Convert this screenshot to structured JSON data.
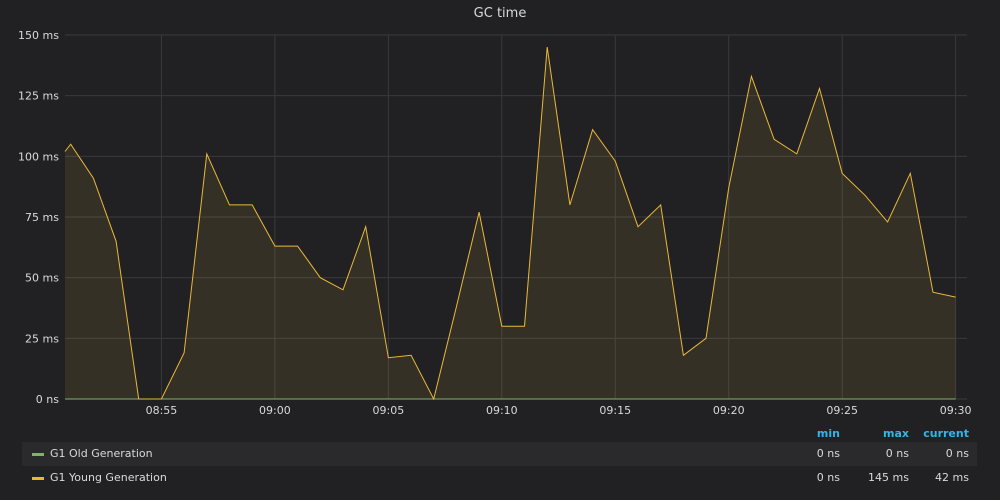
{
  "panel": {
    "title": "GC time"
  },
  "legend": {
    "headers": {
      "min": "min",
      "max": "max",
      "current": "current"
    },
    "series": [
      {
        "name": "G1 Old Generation",
        "color": "#7eb26d",
        "min": "0 ns",
        "max": "0 ns",
        "current": "0 ns"
      },
      {
        "name": "G1 Young Generation",
        "color": "#eab839",
        "min": "0 ns",
        "max": "145 ms",
        "current": "42 ms"
      }
    ]
  },
  "chart_data": {
    "type": "area",
    "title": "GC time",
    "unit": "ms",
    "x_ticks": [
      "08:55",
      "09:00",
      "09:05",
      "09:10",
      "09:15",
      "09:20",
      "09:25",
      "09:30"
    ],
    "x_start": "08:50:45",
    "x_end": "09:30:30",
    "y_ticks": [
      "0 ns",
      "25 ms",
      "50 ms",
      "75 ms",
      "100 ms",
      "125 ms",
      "150 ms"
    ],
    "ylim": [
      0,
      150
    ],
    "grid": true,
    "legend_position": "bottom",
    "series": [
      {
        "name": "G1 Old Generation",
        "color": "#7eb26d",
        "x": [
          "08:50",
          "08:51",
          "08:52",
          "08:53",
          "08:54",
          "08:55",
          "08:56",
          "08:57",
          "08:58",
          "08:59",
          "09:00",
          "09:01",
          "09:02",
          "09:03",
          "09:04",
          "09:05",
          "09:06",
          "09:07",
          "09:08",
          "09:09",
          "09:10",
          "09:11",
          "09:12",
          "09:13",
          "09:14",
          "09:15",
          "09:16",
          "09:17",
          "09:18",
          "09:19",
          "09:20",
          "09:21",
          "09:22",
          "09:23",
          "09:24",
          "09:25",
          "09:26",
          "09:27",
          "09:28",
          "09:29",
          "09:30"
        ],
        "values": [
          0,
          0,
          0,
          0,
          0,
          0,
          0,
          0,
          0,
          0,
          0,
          0,
          0,
          0,
          0,
          0,
          0,
          0,
          0,
          0,
          0,
          0,
          0,
          0,
          0,
          0,
          0,
          0,
          0,
          0,
          0,
          0,
          0,
          0,
          0,
          0,
          0,
          0,
          0,
          0,
          0
        ]
      },
      {
        "name": "G1 Young Generation",
        "color": "#eab839",
        "x": [
          "08:50:45",
          "08:51",
          "08:52",
          "08:53",
          "08:54",
          "08:55",
          "08:56",
          "08:57",
          "08:58",
          "08:59",
          "09:00",
          "09:01",
          "09:02",
          "09:03",
          "09:04",
          "09:05",
          "09:06",
          "09:07",
          "09:08",
          "09:09",
          "09:10",
          "09:11",
          "09:12",
          "09:13",
          "09:14",
          "09:15",
          "09:16",
          "09:17",
          "09:18",
          "09:19",
          "09:20",
          "09:21",
          "09:22",
          "09:23",
          "09:24",
          "09:25",
          "09:26",
          "09:27",
          "09:28",
          "09:29",
          "09:30"
        ],
        "values": [
          102,
          105,
          91,
          65,
          0,
          0,
          19,
          101,
          80,
          80,
          63,
          63,
          50,
          45,
          71,
          17,
          18,
          0,
          38,
          77,
          30,
          30,
          145,
          80,
          111,
          98,
          71,
          80,
          18,
          25,
          87,
          133,
          107,
          101,
          128,
          93,
          84,
          73,
          93,
          44,
          42
        ]
      }
    ]
  }
}
